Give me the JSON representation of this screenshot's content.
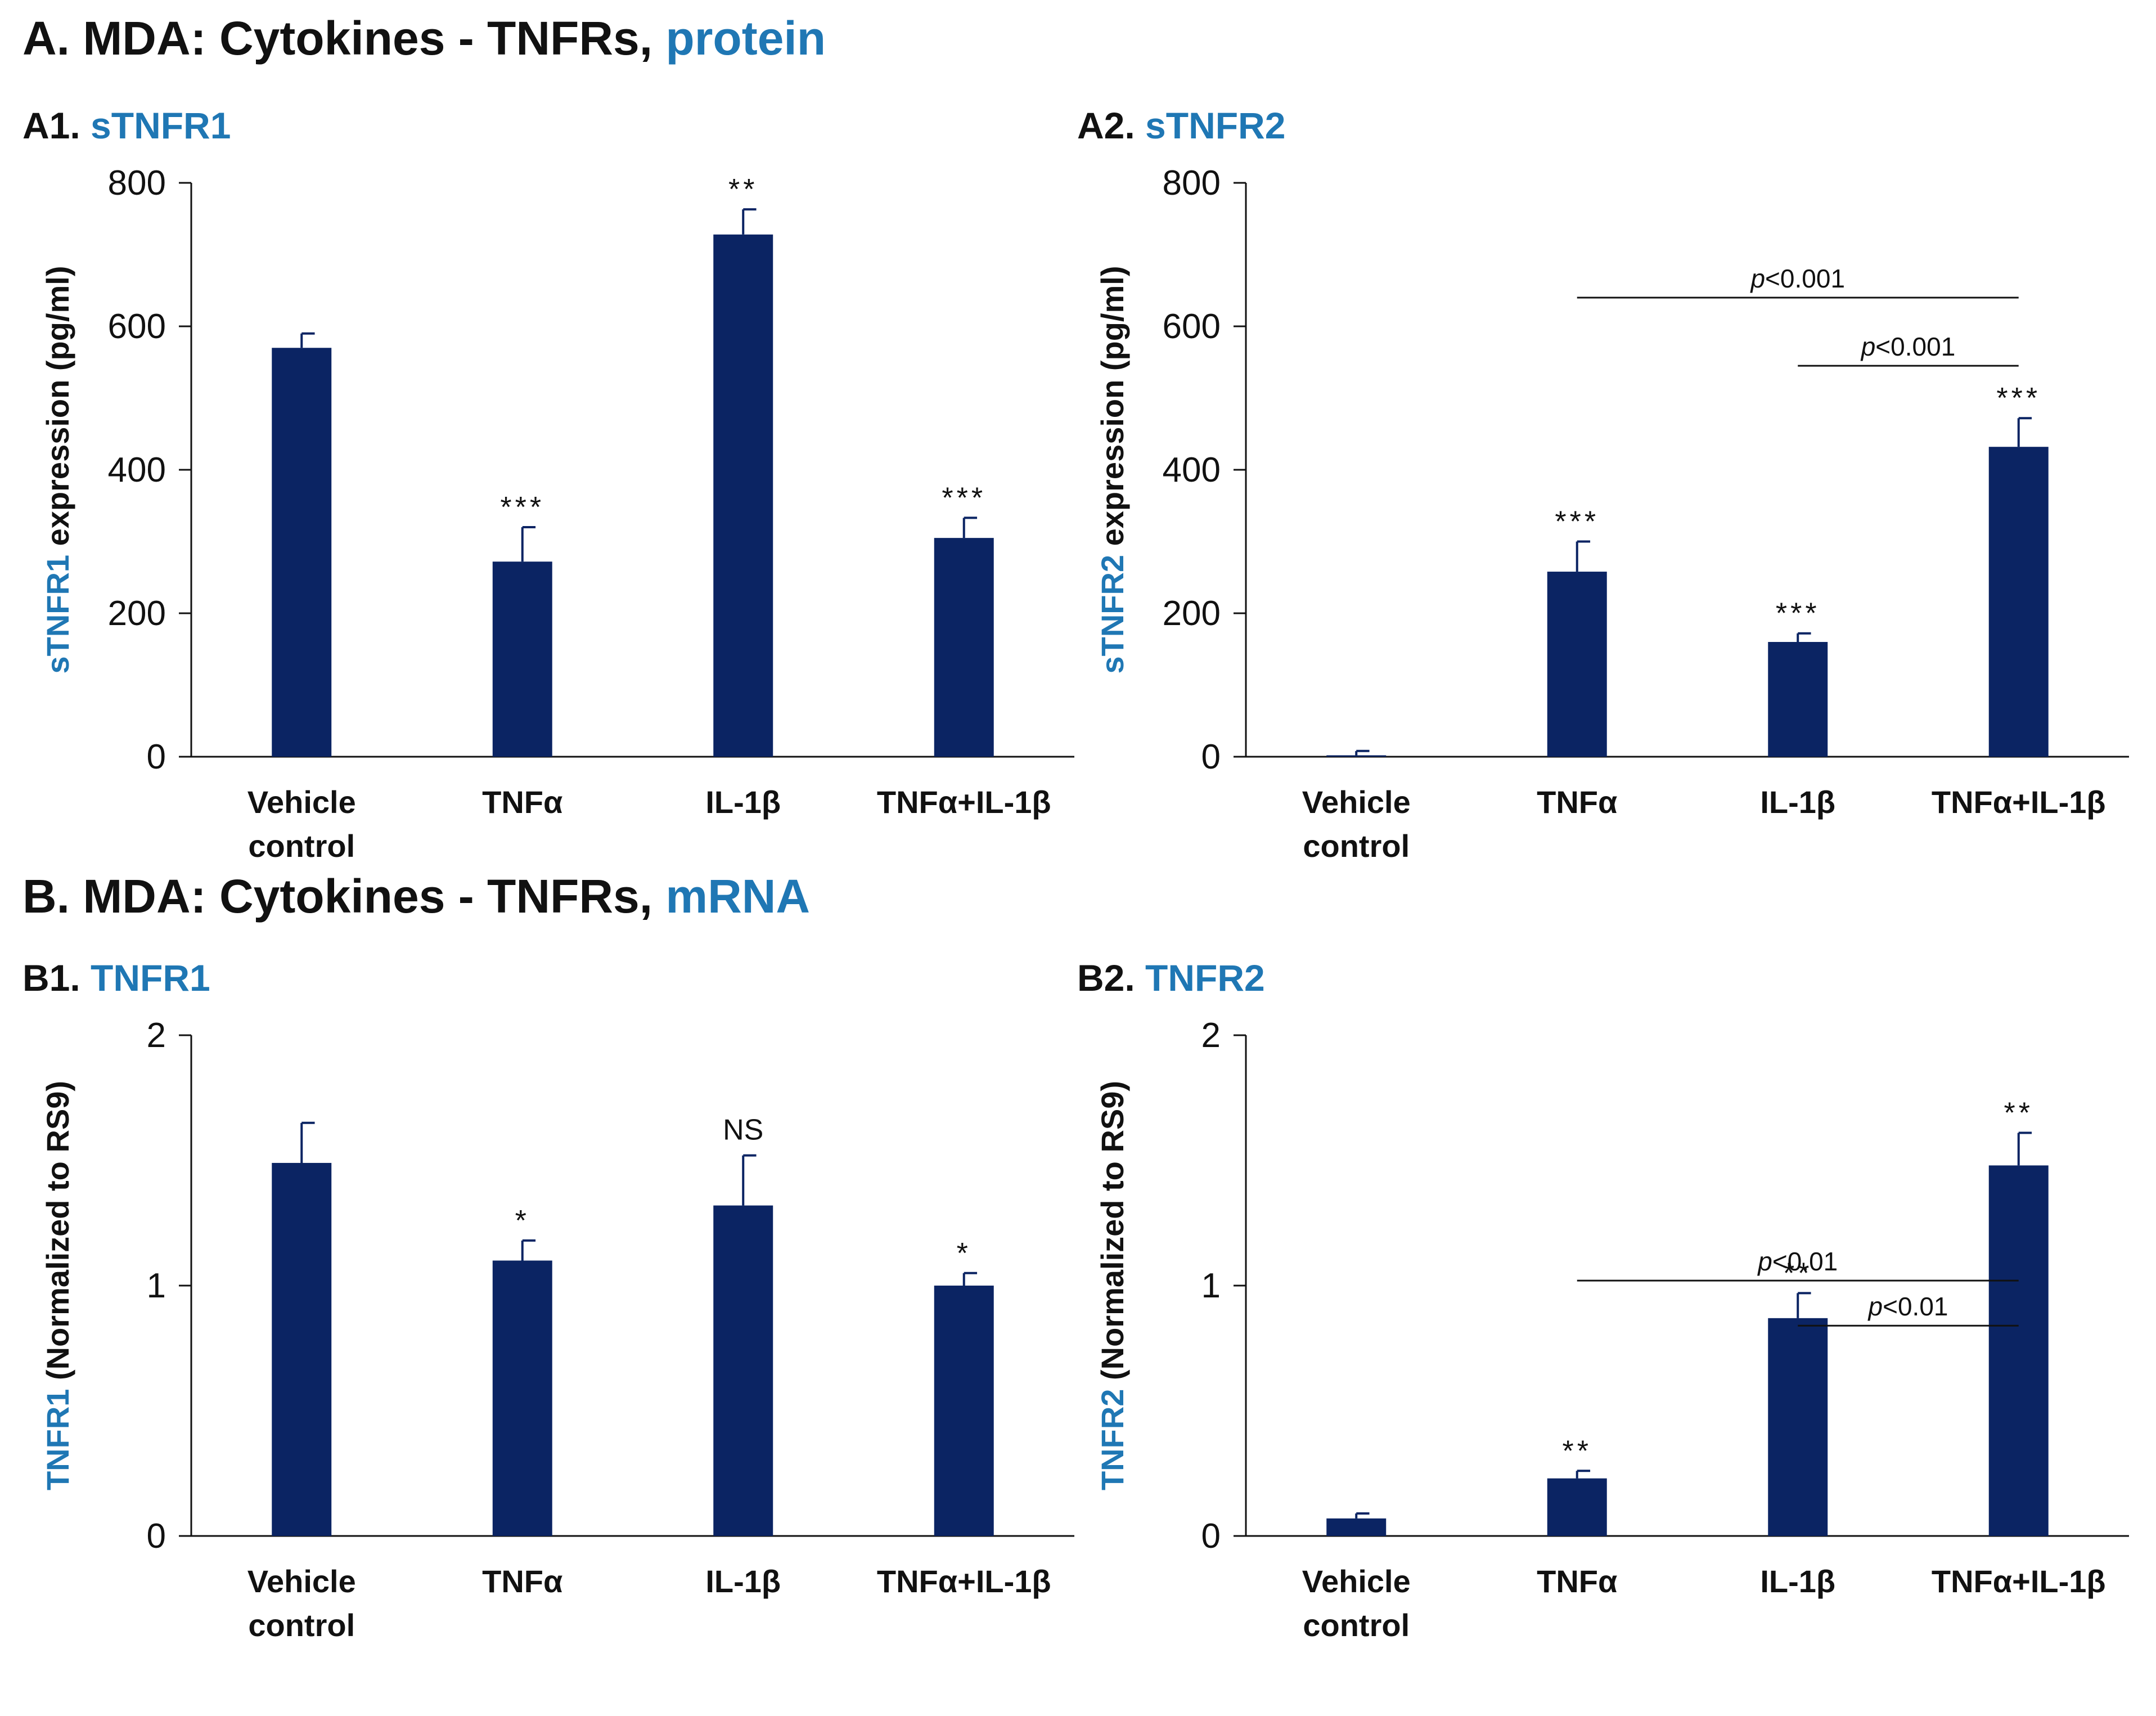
{
  "section_a": {
    "prefix": "A. MDA: Cytokines - TNFRs, ",
    "accent": "protein"
  },
  "section_b": {
    "prefix": "B. MDA: Cytokines - TNFRs, ",
    "accent": "mRNA"
  },
  "colors": {
    "accent": "#1f77b4",
    "bar": "#0b2463",
    "axis": "#111111"
  },
  "chart_data": [
    {
      "id": "A1",
      "type": "bar",
      "panel_prefix": "A1. ",
      "panel_name": "sTNFR1",
      "ylabel_accent": "sTNFR1",
      "ylabel_rest": " expression (pg/ml)",
      "categories": [
        [
          "Vehicle",
          "control"
        ],
        [
          "TNFα"
        ],
        [
          "IL-1β"
        ],
        [
          "TNFα+IL-1β"
        ]
      ],
      "values": [
        570,
        272,
        728,
        305
      ],
      "errors": [
        20,
        48,
        35,
        28
      ],
      "significance": [
        "",
        "***",
        "**",
        "***"
      ],
      "ylim": [
        0,
        800
      ],
      "yticks": [
        0,
        200,
        400,
        600,
        800
      ],
      "comparisons": []
    },
    {
      "id": "A2",
      "type": "bar",
      "panel_prefix": "A2. ",
      "panel_name": "sTNFR2",
      "ylabel_accent": "sTNFR2",
      "ylabel_rest": " expression (pg/ml)",
      "categories": [
        [
          "Vehicle",
          "control"
        ],
        [
          "TNFα"
        ],
        [
          "IL-1β"
        ],
        [
          "TNFα+IL-1β"
        ]
      ],
      "values": [
        2,
        258,
        160,
        432
      ],
      "errors": [
        6,
        42,
        12,
        40
      ],
      "significance": [
        "",
        "***",
        "***",
        "***"
      ],
      "ylim": [
        0,
        800
      ],
      "yticks": [
        0,
        200,
        400,
        600,
        800
      ],
      "comparisons": [
        {
          "from": 1,
          "to": 3,
          "p": "p",
          "rest": "<0.001",
          "y": 640
        },
        {
          "from": 2,
          "to": 3,
          "p": "p",
          "rest": "<0.001",
          "y": 545
        }
      ]
    },
    {
      "id": "B1",
      "type": "bar",
      "panel_prefix": "B1. ",
      "panel_name": "TNFR1",
      "ylabel_accent": "TNFR1",
      "ylabel_rest": " (Normalized to RS9)",
      "categories": [
        [
          "Vehicle",
          "control"
        ],
        [
          "TNFα"
        ],
        [
          "IL-1β"
        ],
        [
          "TNFα+IL-1β"
        ]
      ],
      "values": [
        1.49,
        1.1,
        1.32,
        1.0
      ],
      "errors": [
        0.16,
        0.08,
        0.2,
        0.05
      ],
      "significance": [
        "",
        "*",
        "NS",
        "*"
      ],
      "ylim": [
        0,
        2
      ],
      "yticks": [
        0,
        1,
        2
      ],
      "comparisons": []
    },
    {
      "id": "B2",
      "type": "bar",
      "panel_prefix": "B2. ",
      "panel_name": "TNFR2",
      "ylabel_accent": "TNFR2",
      "ylabel_rest": " (Normalized to RS9)",
      "categories": [
        [
          "Vehicle",
          "control"
        ],
        [
          "TNFα"
        ],
        [
          "IL-1β"
        ],
        [
          "TNFα+IL-1β"
        ]
      ],
      "values": [
        0.07,
        0.23,
        0.87,
        1.48
      ],
      "errors": [
        0.02,
        0.03,
        0.1,
        0.13
      ],
      "significance": [
        "",
        "**",
        "**",
        "**"
      ],
      "ylim": [
        0,
        2
      ],
      "yticks": [
        0,
        1,
        2
      ],
      "comparisons": [
        {
          "from": 1,
          "to": 3,
          "p": "p",
          "rest": "<0.01",
          "y": 1.02
        },
        {
          "from": 2,
          "to": 3,
          "p": "p",
          "rest": "<0.01",
          "y": 0.84
        }
      ]
    }
  ]
}
